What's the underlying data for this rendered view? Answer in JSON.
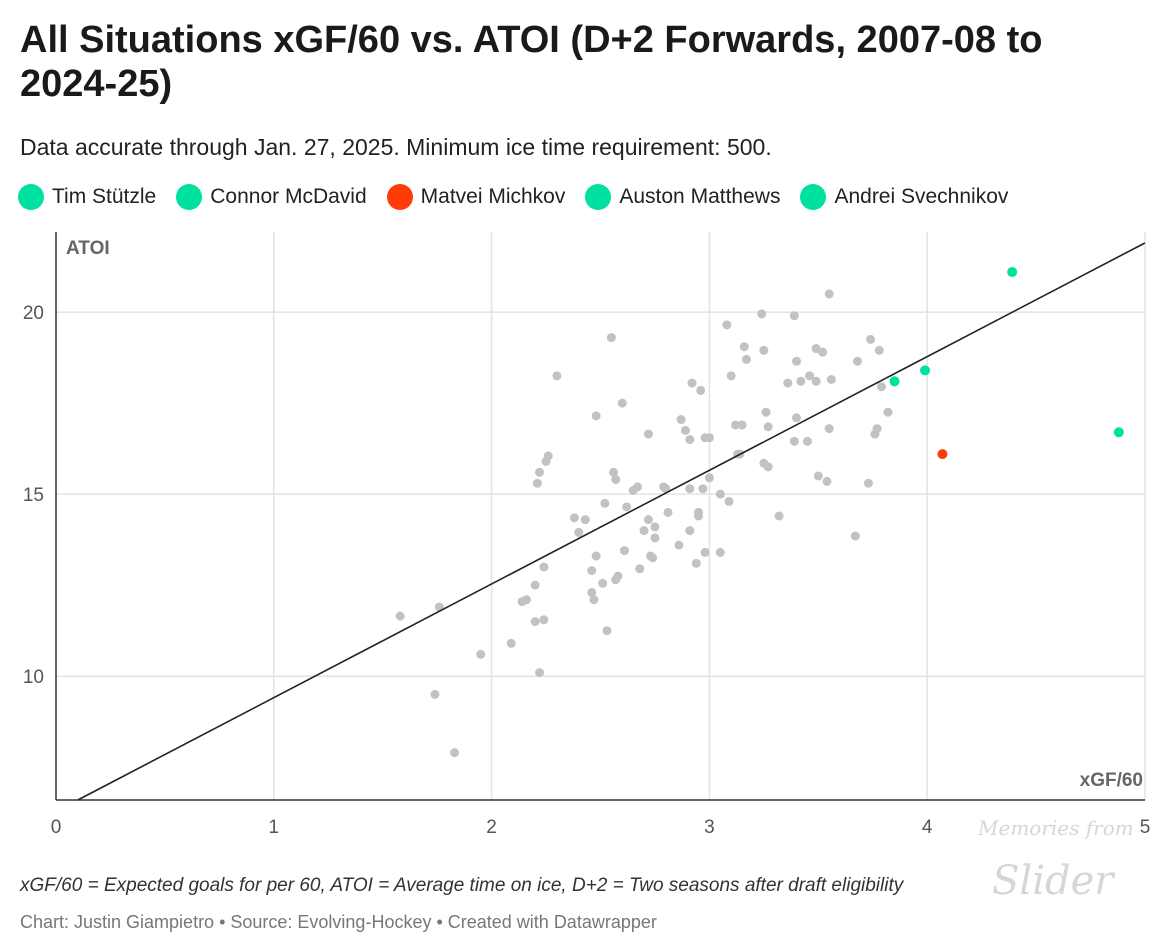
{
  "title": "All Situations xGF/60 vs. ATOI (D+2 Forwards, 2007-08 to 2024-25)",
  "subtitle": "Data accurate through Jan. 27, 2025. Minimum ice time requirement: 500.",
  "legend": [
    {
      "label": "Tim Stützle",
      "color": "#00e0a0"
    },
    {
      "label": "Connor McDavid",
      "color": "#00e0a0"
    },
    {
      "label": "Matvei Michkov",
      "color": "#ff3b0a"
    },
    {
      "label": "Auston Matthews",
      "color": "#00e0a0"
    },
    {
      "label": "Andrei Svechnikov",
      "color": "#00e0a0"
    }
  ],
  "notes": "xGF/60 = Expected goals for per 60, ATOI = Average time on ice, D+2 = Two seasons after draft eligibility",
  "credits": "Chart: Justin Giampietro • Source: Evolving-Hockey • Created with Datawrapper",
  "watermark": {
    "line1": "Memories from",
    "line2": "Slider"
  },
  "chart_data": {
    "type": "scatter",
    "xlabel": "xGF/60",
    "ylabel": "ATOI",
    "xlim": [
      0,
      5
    ],
    "ylim": [
      6.6,
      22.2
    ],
    "x_ticks": [
      0,
      1,
      2,
      3,
      4,
      5
    ],
    "y_ticks": [
      10,
      15,
      20
    ],
    "grid": true,
    "trendline": {
      "x": [
        0.1,
        5.0
      ],
      "y": [
        6.6,
        21.9
      ]
    },
    "highlight_colors": {
      "teal": "#00e0a0",
      "red": "#ff3b0a",
      "gray": "#c2c2c2"
    },
    "highlighted_points": [
      {
        "x": 3.85,
        "y": 18.1,
        "color": "#00e0a0"
      },
      {
        "x": 3.99,
        "y": 18.4,
        "color": "#00e0a0"
      },
      {
        "x": 4.39,
        "y": 21.1,
        "color": "#00e0a0"
      },
      {
        "x": 4.88,
        "y": 16.7,
        "color": "#00e0a0"
      },
      {
        "x": 4.07,
        "y": 16.1,
        "color": "#ff3b0a"
      }
    ],
    "points": [
      [
        1.58,
        11.65
      ],
      [
        1.74,
        9.5
      ],
      [
        1.76,
        11.9
      ],
      [
        1.83,
        7.9
      ],
      [
        1.95,
        10.6
      ],
      [
        2.09,
        10.9
      ],
      [
        2.14,
        12.05
      ],
      [
        2.16,
        12.1
      ],
      [
        2.2,
        11.5
      ],
      [
        2.2,
        12.5
      ],
      [
        2.21,
        15.3
      ],
      [
        2.22,
        15.6
      ],
      [
        2.22,
        10.1
      ],
      [
        2.24,
        11.55
      ],
      [
        2.24,
        13.0
      ],
      [
        2.25,
        15.9
      ],
      [
        2.26,
        16.05
      ],
      [
        2.3,
        18.25
      ],
      [
        2.38,
        14.35
      ],
      [
        2.4,
        13.95
      ],
      [
        2.43,
        14.3
      ],
      [
        2.46,
        12.3
      ],
      [
        2.46,
        12.9
      ],
      [
        2.47,
        12.1
      ],
      [
        2.48,
        17.15
      ],
      [
        2.48,
        13.3
      ],
      [
        2.51,
        12.55
      ],
      [
        2.52,
        14.75
      ],
      [
        2.53,
        11.25
      ],
      [
        2.55,
        19.3
      ],
      [
        2.56,
        15.6
      ],
      [
        2.57,
        15.4
      ],
      [
        2.57,
        12.65
      ],
      [
        2.58,
        12.75
      ],
      [
        2.6,
        17.5
      ],
      [
        2.61,
        13.45
      ],
      [
        2.62,
        14.65
      ],
      [
        2.65,
        15.1
      ],
      [
        2.67,
        15.2
      ],
      [
        2.68,
        12.95
      ],
      [
        2.7,
        14.0
      ],
      [
        2.72,
        16.65
      ],
      [
        2.72,
        14.3
      ],
      [
        2.73,
        13.3
      ],
      [
        2.74,
        13.25
      ],
      [
        2.75,
        14.1
      ],
      [
        2.75,
        13.8
      ],
      [
        2.79,
        15.2
      ],
      [
        2.8,
        15.15
      ],
      [
        2.81,
        14.5
      ],
      [
        2.86,
        13.6
      ],
      [
        2.87,
        17.05
      ],
      [
        2.89,
        16.75
      ],
      [
        2.91,
        14.0
      ],
      [
        2.91,
        16.5
      ],
      [
        2.91,
        15.15
      ],
      [
        2.92,
        18.05
      ],
      [
        2.94,
        13.1
      ],
      [
        2.95,
        14.4
      ],
      [
        2.95,
        14.5
      ],
      [
        2.96,
        17.85
      ],
      [
        2.97,
        15.15
      ],
      [
        2.98,
        16.55
      ],
      [
        2.98,
        13.4
      ],
      [
        3.0,
        15.45
      ],
      [
        3.0,
        16.55
      ],
      [
        3.05,
        13.4
      ],
      [
        3.05,
        15.0
      ],
      [
        3.08,
        19.65
      ],
      [
        3.09,
        14.8
      ],
      [
        3.1,
        18.25
      ],
      [
        3.12,
        16.9
      ],
      [
        3.13,
        16.1
      ],
      [
        3.14,
        16.1
      ],
      [
        3.15,
        16.9
      ],
      [
        3.16,
        19.05
      ],
      [
        3.17,
        18.7
      ],
      [
        3.24,
        19.95
      ],
      [
        3.25,
        18.95
      ],
      [
        3.25,
        15.85
      ],
      [
        3.26,
        17.25
      ],
      [
        3.27,
        15.75
      ],
      [
        3.27,
        16.85
      ],
      [
        3.32,
        14.4
      ],
      [
        3.36,
        18.05
      ],
      [
        3.39,
        19.9
      ],
      [
        3.39,
        16.45
      ],
      [
        3.4,
        17.1
      ],
      [
        3.4,
        18.65
      ],
      [
        3.42,
        18.1
      ],
      [
        3.45,
        16.45
      ],
      [
        3.46,
        18.25
      ],
      [
        3.49,
        18.1
      ],
      [
        3.49,
        19.0
      ],
      [
        3.5,
        15.5
      ],
      [
        3.52,
        18.9
      ],
      [
        3.54,
        15.35
      ],
      [
        3.55,
        20.5
      ],
      [
        3.55,
        16.8
      ],
      [
        3.56,
        18.15
      ],
      [
        3.67,
        13.85
      ],
      [
        3.68,
        18.65
      ],
      [
        3.73,
        15.3
      ],
      [
        3.74,
        19.25
      ],
      [
        3.76,
        16.65
      ],
      [
        3.77,
        16.8
      ],
      [
        3.78,
        18.95
      ],
      [
        3.79,
        17.95
      ],
      [
        3.82,
        17.25
      ]
    ]
  }
}
